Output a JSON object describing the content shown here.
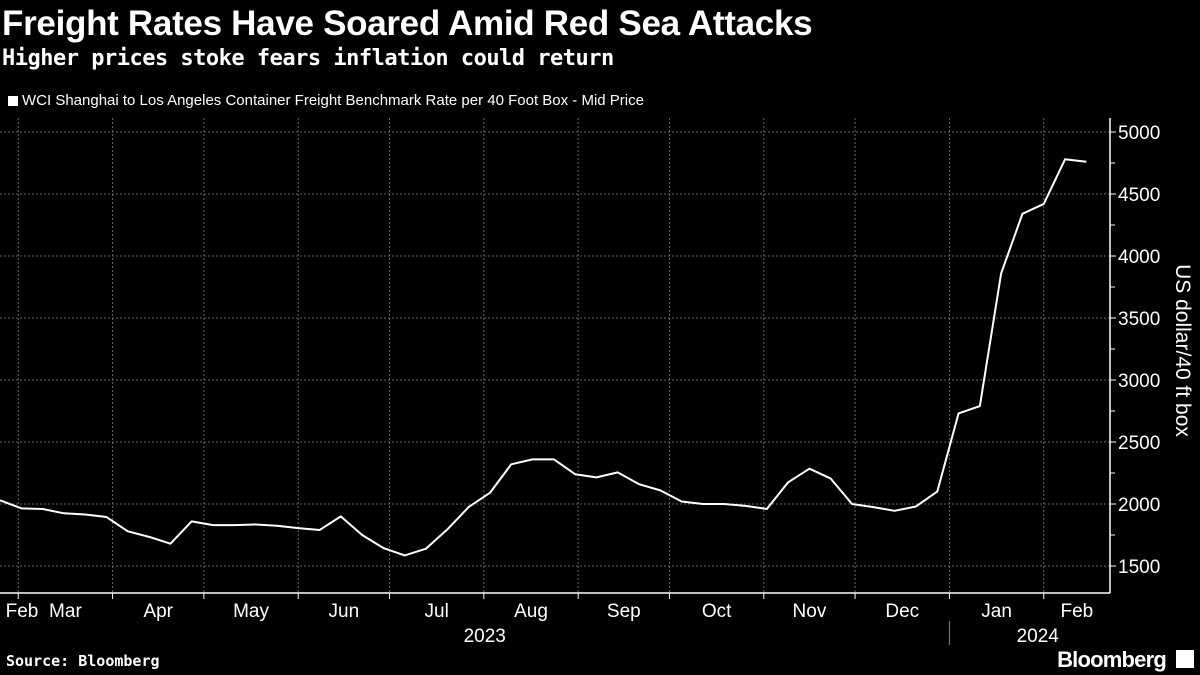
{
  "header": {
    "title": "Freight Rates Have Soared Amid Red Sea Attacks",
    "subtitle": "Higher prices stoke fears inflation could return"
  },
  "footer": {
    "source": "Source: Bloomberg",
    "logo": "Bloomberg"
  },
  "chart_data": {
    "type": "line",
    "title": "Freight Rates Have Soared Amid Red Sea Attacks",
    "subtitle": "Higher prices stoke fears inflation could return",
    "ylabel": "US dollar/40 ft box",
    "ylim": [
      1250,
      5100
    ],
    "yticks": [
      1500,
      2000,
      2500,
      3000,
      3500,
      4000,
      4500,
      5000
    ],
    "y_axis_side": "right",
    "grid": true,
    "legend_placement": "top-left",
    "colors": {
      "background": "#000000",
      "line": "#ffffff",
      "grid": "#666666"
    },
    "month_labels": [
      {
        "month": "2023-02",
        "label": "Feb"
      },
      {
        "month": "2023-03",
        "label": "Mar"
      },
      {
        "month": "2023-04",
        "label": "Apr"
      },
      {
        "month": "2023-05",
        "label": "May"
      },
      {
        "month": "2023-06",
        "label": "Jun"
      },
      {
        "month": "2023-07",
        "label": "Jul"
      },
      {
        "month": "2023-08",
        "label": "Aug"
      },
      {
        "month": "2023-09",
        "label": "Sep"
      },
      {
        "month": "2023-10",
        "label": "Oct"
      },
      {
        "month": "2023-11",
        "label": "Nov"
      },
      {
        "month": "2023-12",
        "label": "Dec"
      },
      {
        "month": "2024-01",
        "label": "Jan"
      },
      {
        "month": "2024-02",
        "label": "Feb"
      }
    ],
    "year_labels": [
      "2023",
      "2024"
    ],
    "series": [
      {
        "name": "WCI Shanghai to Los Angeles Container Freight Benchmark Rate per 40 Foot Box - Mid Price",
        "start": "2023-02-23",
        "interval": "weekly",
        "values": [
          2030,
          1965,
          1960,
          1925,
          1915,
          1895,
          1780,
          1735,
          1680,
          1860,
          1830,
          1830,
          1835,
          1825,
          1805,
          1790,
          1900,
          1750,
          1645,
          1585,
          1640,
          1795,
          1975,
          2090,
          2320,
          2360,
          2360,
          2240,
          2215,
          2255,
          2160,
          2110,
          2020,
          2000,
          2000,
          1985,
          1960,
          2175,
          2285,
          2205,
          2000,
          1975,
          1945,
          1980,
          2100,
          2730,
          2790,
          3860,
          4340,
          4420,
          4780,
          4760
        ]
      }
    ]
  }
}
